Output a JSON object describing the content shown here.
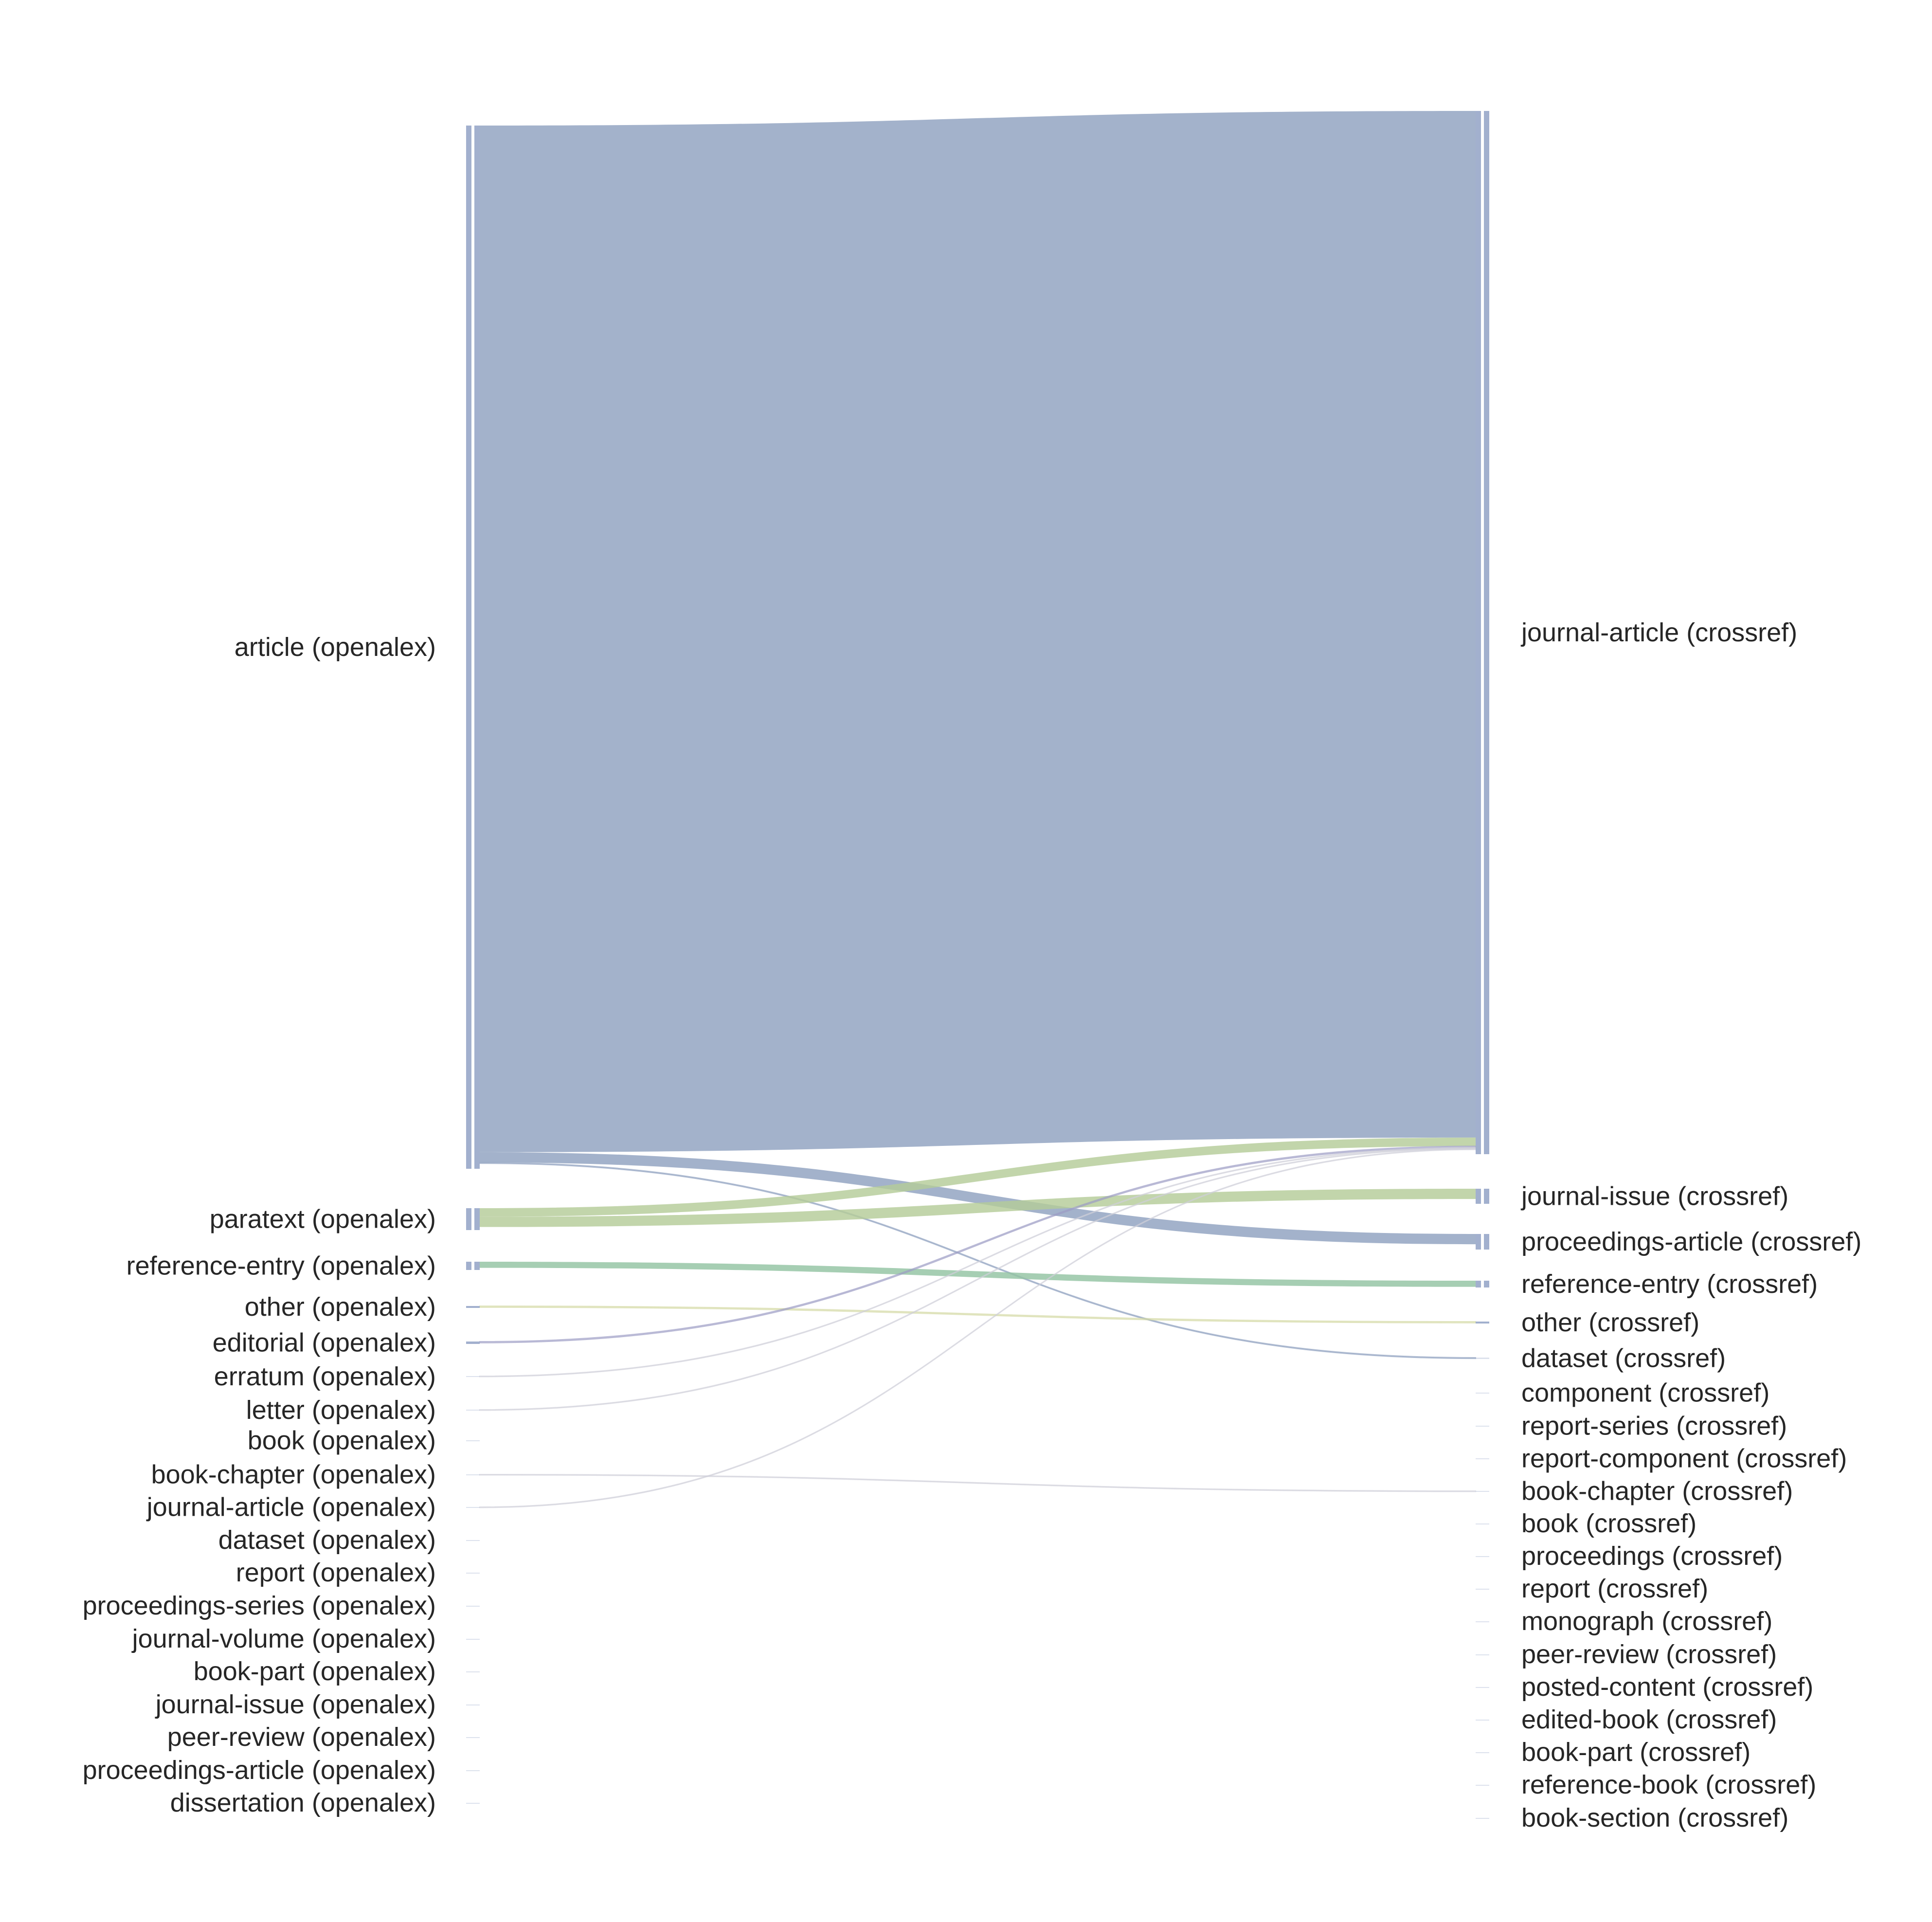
{
  "colors": {
    "blue": "#8fa1bf",
    "green": "#b5cc98",
    "teal": "#93c3a2",
    "purple": "#9c9cc4",
    "olive": "#d4d8a3",
    "gray": "#cfcfd8",
    "node": "#9daccb"
  },
  "chart_data": {
    "type": "sankey",
    "sources": [
      {
        "id": "s_article",
        "label": "article (openalex)"
      },
      {
        "id": "s_paratext",
        "label": "paratext (openalex)"
      },
      {
        "id": "s_refentry",
        "label": "reference-entry (openalex)"
      },
      {
        "id": "s_other",
        "label": "other (openalex)"
      },
      {
        "id": "s_editorial",
        "label": "editorial (openalex)"
      },
      {
        "id": "s_erratum",
        "label": "erratum (openalex)"
      },
      {
        "id": "s_letter",
        "label": "letter (openalex)"
      },
      {
        "id": "s_book",
        "label": "book (openalex)"
      },
      {
        "id": "s_bookchapter",
        "label": "book-chapter (openalex)"
      },
      {
        "id": "s_journalarticle",
        "label": "journal-article (openalex)"
      },
      {
        "id": "s_dataset",
        "label": "dataset (openalex)"
      },
      {
        "id": "s_report",
        "label": "report (openalex)"
      },
      {
        "id": "s_procseries",
        "label": "proceedings-series (openalex)"
      },
      {
        "id": "s_journalvolume",
        "label": "journal-volume (openalex)"
      },
      {
        "id": "s_bookpart",
        "label": "book-part (openalex)"
      },
      {
        "id": "s_journalissue",
        "label": "journal-issue (openalex)"
      },
      {
        "id": "s_peerreview",
        "label": "peer-review (openalex)"
      },
      {
        "id": "s_procarticle",
        "label": "proceedings-article (openalex)"
      },
      {
        "id": "s_dissertation",
        "label": "dissertation (openalex)"
      }
    ],
    "targets": [
      {
        "id": "t_journalarticle",
        "label": "journal-article (crossref)"
      },
      {
        "id": "t_journalissue",
        "label": "journal-issue (crossref)"
      },
      {
        "id": "t_procarticle",
        "label": "proceedings-article (crossref)"
      },
      {
        "id": "t_refentry",
        "label": "reference-entry (crossref)"
      },
      {
        "id": "t_other",
        "label": "other (crossref)"
      },
      {
        "id": "t_dataset",
        "label": "dataset (crossref)"
      },
      {
        "id": "t_component",
        "label": "component (crossref)"
      },
      {
        "id": "t_reportseries",
        "label": "report-series (crossref)"
      },
      {
        "id": "t_reportcomponent",
        "label": "report-component (crossref)"
      },
      {
        "id": "t_bookchapter",
        "label": "book-chapter (crossref)"
      },
      {
        "id": "t_book",
        "label": "book (crossref)"
      },
      {
        "id": "t_proceedings",
        "label": "proceedings (crossref)"
      },
      {
        "id": "t_report",
        "label": "report (crossref)"
      },
      {
        "id": "t_monograph",
        "label": "monograph (crossref)"
      },
      {
        "id": "t_peerreview",
        "label": "peer-review (crossref)"
      },
      {
        "id": "t_postedcontent",
        "label": "posted-content (crossref)"
      },
      {
        "id": "t_editedbook",
        "label": "edited-book (crossref)"
      },
      {
        "id": "t_bookpart",
        "label": "book-part (crossref)"
      },
      {
        "id": "t_referencebook",
        "label": "reference-book (crossref)"
      },
      {
        "id": "t_booksection",
        "label": "book-section (crossref)"
      }
    ],
    "links": [
      {
        "source": "s_article",
        "target": "t_journalarticle",
        "value": 3000,
        "color": "blue"
      },
      {
        "source": "s_article",
        "target": "t_procarticle",
        "value": 30,
        "color": "blue"
      },
      {
        "source": "s_article",
        "target": "t_dataset",
        "value": 3,
        "color": "blue"
      },
      {
        "source": "s_paratext",
        "target": "t_journalarticle",
        "value": 25,
        "color": "green"
      },
      {
        "source": "s_paratext",
        "target": "t_journalissue",
        "value": 30,
        "color": "green"
      },
      {
        "source": "s_refentry",
        "target": "t_refentry",
        "value": 18,
        "color": "teal"
      },
      {
        "source": "s_other",
        "target": "t_other",
        "value": 4,
        "color": "olive"
      },
      {
        "source": "s_editorial",
        "target": "t_journalarticle",
        "value": 4,
        "color": "purple"
      },
      {
        "source": "s_erratum",
        "target": "t_journalarticle",
        "value": 1,
        "color": "gray"
      },
      {
        "source": "s_letter",
        "target": "t_journalarticle",
        "value": 1,
        "color": "gray"
      },
      {
        "source": "s_bookchapter",
        "target": "t_bookchapter",
        "value": 0.5,
        "color": "gray"
      },
      {
        "source": "s_journalarticle",
        "target": "t_journalarticle",
        "value": 0.5,
        "color": "gray"
      }
    ]
  }
}
